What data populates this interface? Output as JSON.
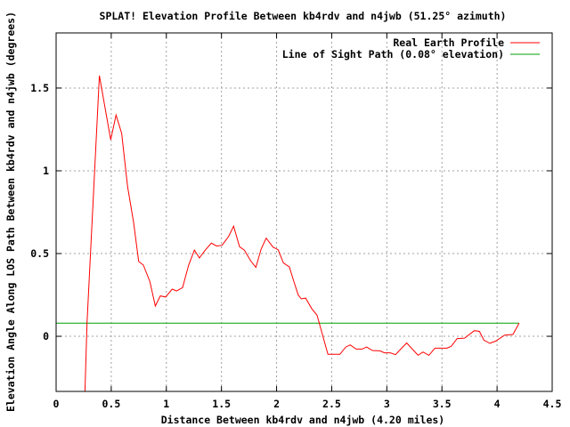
{
  "chart_data": {
    "type": "line",
    "title": "SPLAT! Elevation Profile Between kb4rdv and n4jwb (51.25° azimuth)",
    "xlabel": "Distance Between kb4rdv and n4jwb (4.20 miles)",
    "ylabel": "Elevation Angle Along LOS Path Between kb4rdv and n4jwb (degrees)",
    "xlim": [
      0,
      4.5
    ],
    "ylim": [
      -0.333,
      1.833
    ],
    "xticks": [
      0,
      0.5,
      1,
      1.5,
      2,
      2.5,
      3,
      3.5,
      4,
      4.5
    ],
    "xtick_labels": [
      "0",
      "0.5",
      "1",
      "1.5",
      "2",
      "2.5",
      "3",
      "3.5",
      "4",
      "4.5"
    ],
    "yticks": [
      0,
      0.5,
      1,
      1.5
    ],
    "ytick_labels": [
      "0",
      "0.5",
      "1",
      "1.5"
    ],
    "grid": true,
    "legend_position": "top-right",
    "series": [
      {
        "name": "Real Earth Profile",
        "color": "#ff0000",
        "x": [
          0.25,
          0.28,
          0.393,
          0.495,
          0.544,
          0.595,
          0.649,
          0.703,
          0.749,
          0.792,
          0.851,
          0.9,
          0.945,
          0.994,
          1.053,
          1.093,
          1.147,
          1.201,
          1.255,
          1.3,
          1.349,
          1.408,
          1.457,
          1.505,
          1.564,
          1.61,
          1.664,
          1.707,
          1.766,
          1.812,
          1.86,
          1.906,
          1.968,
          2.014,
          2.062,
          2.116,
          2.157,
          2.197,
          2.224,
          2.264,
          2.318,
          2.367,
          2.466,
          2.574,
          2.628,
          2.668,
          2.722,
          2.776,
          2.817,
          2.87,
          2.938,
          2.978,
          3.032,
          3.078,
          3.18,
          3.283,
          3.328,
          3.382,
          3.436,
          3.544,
          3.584,
          3.638,
          3.705,
          3.794,
          3.84,
          3.88,
          3.934,
          3.988,
          4.069,
          4.144,
          4.2
        ],
        "y": [
          -0.6,
          0.08,
          1.575,
          1.187,
          1.337,
          1.226,
          0.903,
          0.688,
          0.452,
          0.43,
          0.33,
          0.183,
          0.244,
          0.237,
          0.285,
          0.274,
          0.294,
          0.428,
          0.521,
          0.473,
          0.518,
          0.563,
          0.545,
          0.55,
          0.602,
          0.665,
          0.541,
          0.521,
          0.455,
          0.416,
          0.527,
          0.593,
          0.539,
          0.523,
          0.443,
          0.419,
          0.33,
          0.249,
          0.226,
          0.231,
          0.168,
          0.127,
          -0.109,
          -0.109,
          -0.065,
          -0.052,
          -0.077,
          -0.077,
          -0.065,
          -0.086,
          -0.088,
          -0.1,
          -0.1,
          -0.111,
          -0.04,
          -0.115,
          -0.095,
          -0.115,
          -0.072,
          -0.072,
          -0.061,
          -0.014,
          -0.011,
          0.034,
          0.03,
          -0.023,
          -0.043,
          -0.029,
          0.007,
          0.011,
          0.08
        ]
      },
      {
        "name": "Line of Sight Path (0.08° elevation)",
        "color": "#00a000",
        "x": [
          0,
          4.2
        ],
        "y": [
          0.08,
          0.08
        ]
      }
    ]
  }
}
